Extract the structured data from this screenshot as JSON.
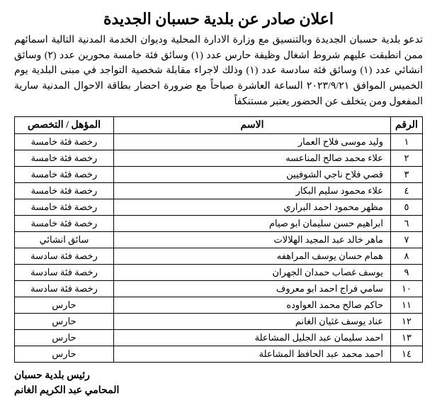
{
  "title": "اعلان صادر عن بلدية حسبان الجديدة",
  "intro": "تدعو بلدية حسبان الجديدة وبالتنسيق مع وزارة الادارة المحلية وديوان الخدمة المدنية التالية اسمائهم ممن انطبقت عليهم شروط اشغال وظيفة حارس عدد (١) وسائق فئة خامسة محورين عدد (٢) وسائق انشائي عدد (١) وسائق فئة سادسة عدد (١) وذلك لاجراء مقابلة شخصية التواجد في مبنى البلدية يوم الخميس الموافق ٢٠٢٣/٩/٢١ الساعة العاشرة صباحاً مع ضرورة احضار بطاقة الاحوال المدنية سارية المفعول ومن يتخلف عن الحضور يعتبر مستنكفاً",
  "table": {
    "headers": {
      "num": "الرقم",
      "name": "الاسم",
      "qual": "المؤهل / التخصص"
    },
    "rows": [
      {
        "num": "١",
        "name": "وليد موسى فلاح العمار",
        "qual": "رخصة فئة خامسة"
      },
      {
        "num": "٢",
        "name": "علاء محمد صالح المناعسه",
        "qual": "رخصة فئة خامسة"
      },
      {
        "num": "٣",
        "name": "قصي فلاح ناجي الشوفيين",
        "qual": "رخصة فئة خامسة"
      },
      {
        "num": "٤",
        "name": "علاء محمود سليم البكار",
        "qual": "رخصة فئة خامسة"
      },
      {
        "num": "٥",
        "name": "مظهر محمود احمد البراري",
        "qual": "رخصة فئة خامسة"
      },
      {
        "num": "٦",
        "name": "ابراهيم حسن سليمان ابو صيام",
        "qual": "رخصة فئة خامسة"
      },
      {
        "num": "٧",
        "name": "ماهر خالد عبد المجيد الهلالات",
        "qual": "سائق انشائي"
      },
      {
        "num": "٨",
        "name": "همام حسان يوسف المراهفه",
        "qual": "رخصة فئة سادسة"
      },
      {
        "num": "٩",
        "name": "يوسف غصاب حمدان الجهران",
        "qual": "رخصة فئة سادسة"
      },
      {
        "num": "١٠",
        "name": "سامي فراج احمد ابو معروف",
        "qual": "رخصة فئة سادسة"
      },
      {
        "num": "١١",
        "name": "حاكم صالح محمد العواوده",
        "qual": "حارس"
      },
      {
        "num": "١٢",
        "name": "عناد يوسف غثيان الغانم",
        "qual": "حارس"
      },
      {
        "num": "١٣",
        "name": "احمد سليمان عبد الجليل المشاعلة",
        "qual": "حارس"
      },
      {
        "num": "١٤",
        "name": "احمد محمد عبد الحافظ المشاعلة",
        "qual": "حارس"
      }
    ]
  },
  "footer": {
    "line1": "رئيس بلدية حسبان",
    "line2": "المحامي عبد الكريم الغانم"
  },
  "colors": {
    "text": "#000000",
    "background": "#ffffff",
    "border": "#000000"
  }
}
